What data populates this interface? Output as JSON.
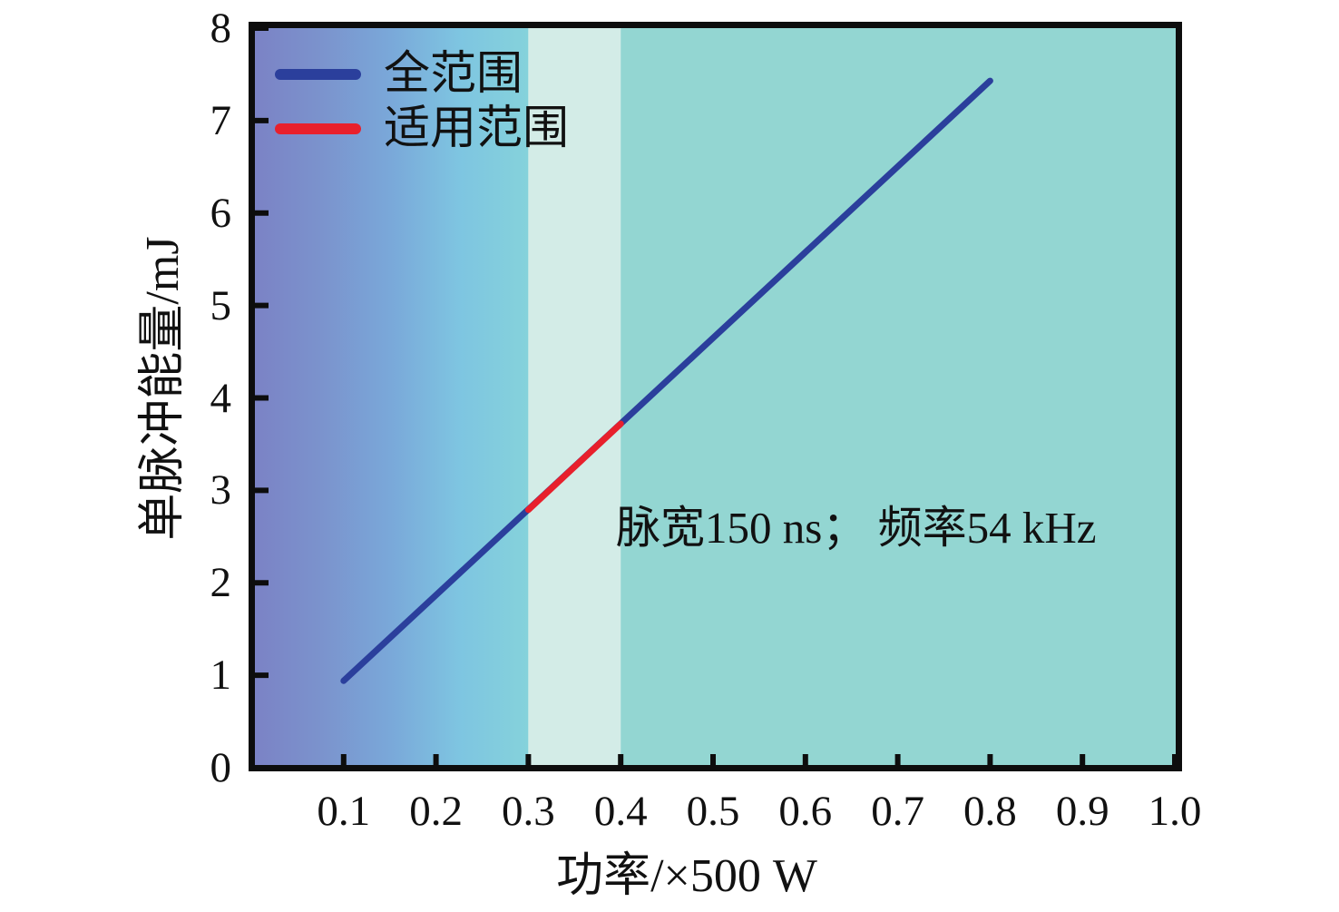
{
  "chart_data": {
    "type": "line",
    "title": "",
    "xlabel": "功率/×500 W",
    "ylabel": "单脉冲能量/mJ",
    "xlim": [
      0,
      1.0
    ],
    "ylim": [
      0,
      8
    ],
    "grid": false,
    "legend_position": "top-left",
    "xticks": [
      0.1,
      0.2,
      0.3,
      0.4,
      0.5,
      0.6,
      0.7,
      0.8,
      0.9,
      1.0
    ],
    "xtick_labels": [
      "0.1",
      "0.2",
      "0.3",
      "0.4",
      "0.5",
      "0.6",
      "0.7",
      "0.8",
      "0.9",
      "1.0"
    ],
    "yticks": [
      0,
      1,
      2,
      3,
      4,
      5,
      6,
      7,
      8
    ],
    "ytick_labels": [
      "0",
      "1",
      "2",
      "3",
      "4",
      "5",
      "6",
      "7",
      "8"
    ],
    "series": [
      {
        "name": "全范围",
        "color": "#2b3f9c",
        "x": [
          0.1,
          0.8
        ],
        "y": [
          0.94,
          7.43
        ]
      },
      {
        "name": "适用范围",
        "color": "#e8202c",
        "x": [
          0.3,
          0.4
        ],
        "y": [
          2.79,
          3.72
        ]
      }
    ],
    "annotation": {
      "text": "脉宽150 ns； 频率54 kHz",
      "x": 0.394,
      "y": 2.55
    },
    "background_bands": [
      {
        "x_from": 0.0,
        "x_to": 0.3,
        "fill_type": "horizontal-gradient",
        "colors": [
          "#7b82c5",
          "#7b93cd",
          "#7aa8d9",
          "#7ec5e1",
          "#85d2db"
        ]
      },
      {
        "x_from": 0.3,
        "x_to": 0.4,
        "fill_type": "solid",
        "colors": [
          "#d3ece7"
        ]
      },
      {
        "x_from": 0.4,
        "x_to": 1.0,
        "fill_type": "solid",
        "colors": [
          "#93d6d2"
        ]
      }
    ],
    "axis_color": "#0d0d0d",
    "text_color": "#111111"
  }
}
